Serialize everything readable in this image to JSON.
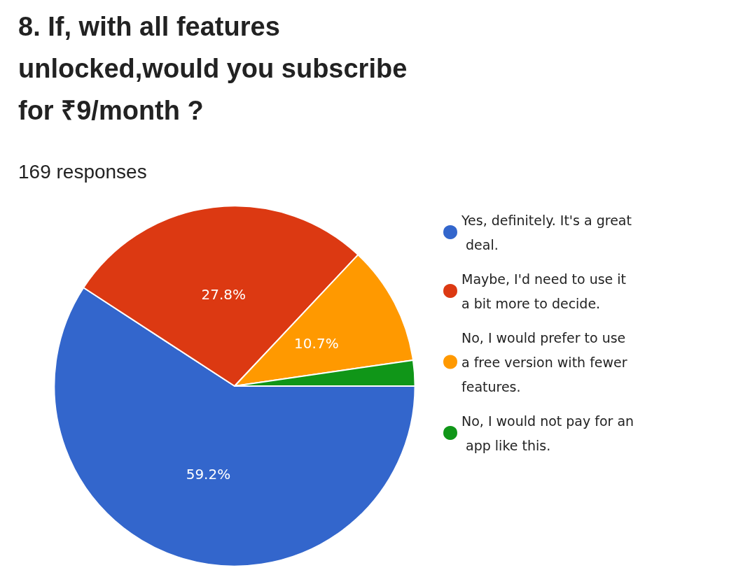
{
  "chart_data": {
    "type": "pie",
    "title": "8. If, with all features unlocked,would you subscribe for ₹9/month ?",
    "subtitle": "169 responses",
    "categories": [
      "Yes, definitely. It's a great deal.",
      "Maybe, I'd need to use it a bit more to decide.",
      "No, I would prefer to use a free version with fewer features.",
      "No, I would not pay for an app like this."
    ],
    "values": [
      59.2,
      27.8,
      10.7,
      2.3
    ],
    "colors": [
      "#3366cc",
      "#dc3912",
      "#ff9900",
      "#109618"
    ],
    "value_labels": [
      "59.2%",
      "27.8%",
      "10.7%",
      null
    ],
    "legend": "right"
  }
}
